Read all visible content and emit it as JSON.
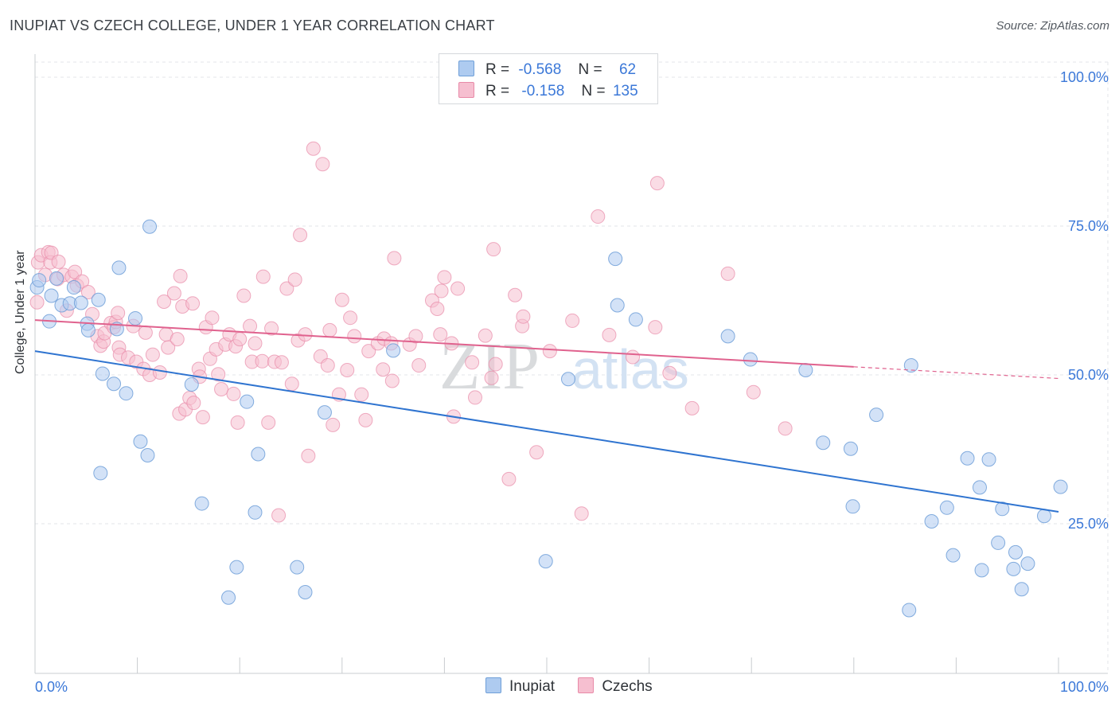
{
  "header": {
    "title": "INUPIAT VS CZECH COLLEGE, UNDER 1 YEAR CORRELATION CHART",
    "source": "Source: ZipAtlas.com"
  },
  "watermark": {
    "zip": "ZIP",
    "atlas": "atlas"
  },
  "legend": {
    "rows": [
      {
        "r_label": "R =",
        "r_value": "-0.568",
        "n_label": "N =",
        "n_value": "62"
      },
      {
        "r_label": "R =",
        "r_value": "-0.158",
        "n_label": "N =",
        "n_value": "135"
      }
    ]
  },
  "bottom_legend": {
    "inupiat": "Inupiat",
    "czechs": "Czechs"
  },
  "colors": {
    "inupiat_fill": "#aecbf0",
    "inupiat_stroke": "#6f9fd8",
    "inupiat_line": "#2f74d0",
    "czechs_fill": "#f6bfd0",
    "czechs_stroke": "#e88aa8",
    "czechs_line": "#e0628e",
    "tick_label": "#3b78d8",
    "grid": "#e3e5e8"
  },
  "chart_data": {
    "type": "scatter",
    "title": "INUPIAT VS CZECH COLLEGE, UNDER 1 YEAR CORRELATION CHART",
    "xlabel": "",
    "ylabel": "College, Under 1 year",
    "xlim": [
      0,
      100
    ],
    "ylim": [
      0,
      100
    ],
    "x_tick_labels": [
      "0.0%",
      "100.0%"
    ],
    "y_tick_labels": [
      {
        "value": 100,
        "label": "100.0%"
      },
      {
        "value": 75,
        "label": "75.0%"
      },
      {
        "value": 50,
        "label": "50.0%"
      },
      {
        "value": 25,
        "label": "25.0%"
      }
    ],
    "series": [
      {
        "name": "Inupiat",
        "r": -0.568,
        "n": 62,
        "trend": {
          "x0": 0,
          "y0": 54.0,
          "x1": 100,
          "y1": 27.0,
          "dashed_from": null
        },
        "points": [
          [
            0.2,
            64.7
          ],
          [
            0.4,
            65.9
          ],
          [
            1.4,
            59.0
          ],
          [
            1.6,
            63.3
          ],
          [
            2.1,
            66.2
          ],
          [
            2.6,
            61.7
          ],
          [
            3.4,
            62.0
          ],
          [
            3.8,
            64.7
          ],
          [
            4.5,
            62.1
          ],
          [
            5.1,
            58.6
          ],
          [
            5.2,
            57.5
          ],
          [
            6.2,
            62.6
          ],
          [
            6.4,
            33.5
          ],
          [
            6.6,
            50.2
          ],
          [
            7.7,
            48.5
          ],
          [
            8.0,
            57.7
          ],
          [
            8.2,
            68.0
          ],
          [
            8.9,
            46.9
          ],
          [
            9.8,
            59.5
          ],
          [
            10.3,
            38.8
          ],
          [
            11.0,
            36.5
          ],
          [
            11.2,
            74.9
          ],
          [
            15.3,
            48.4
          ],
          [
            16.3,
            28.4
          ],
          [
            18.9,
            12.6
          ],
          [
            19.7,
            17.7
          ],
          [
            20.7,
            45.5
          ],
          [
            21.5,
            26.9
          ],
          [
            21.8,
            36.7
          ],
          [
            25.6,
            17.7
          ],
          [
            26.4,
            13.5
          ],
          [
            28.3,
            43.7
          ],
          [
            35.0,
            54.1
          ],
          [
            49.9,
            18.7
          ],
          [
            52.1,
            49.3
          ],
          [
            56.7,
            69.5
          ],
          [
            56.9,
            61.7
          ],
          [
            58.7,
            59.3
          ],
          [
            67.7,
            56.5
          ],
          [
            69.9,
            52.6
          ],
          [
            75.3,
            50.8
          ],
          [
            77.0,
            38.6
          ],
          [
            79.7,
            37.6
          ],
          [
            79.9,
            27.9
          ],
          [
            82.2,
            43.3
          ],
          [
            85.4,
            10.5
          ],
          [
            85.6,
            51.6
          ],
          [
            87.6,
            25.4
          ],
          [
            89.1,
            27.7
          ],
          [
            89.7,
            19.7
          ],
          [
            91.1,
            36.0
          ],
          [
            92.3,
            31.1
          ],
          [
            92.5,
            17.2
          ],
          [
            93.2,
            35.8
          ],
          [
            94.1,
            21.8
          ],
          [
            94.5,
            27.5
          ],
          [
            95.6,
            17.4
          ],
          [
            95.8,
            20.2
          ],
          [
            96.4,
            14.0
          ],
          [
            97.0,
            18.3
          ],
          [
            98.6,
            26.3
          ],
          [
            100.2,
            31.2
          ]
        ]
      },
      {
        "name": "Czechs",
        "r": -0.158,
        "n": 135,
        "trend": {
          "x0": 0,
          "y0": 59.2,
          "x1": 100,
          "y1": 49.4,
          "dashed_from": 80
        },
        "points": [
          [
            0.2,
            62.2
          ],
          [
            0.3,
            68.9
          ],
          [
            0.6,
            70.1
          ],
          [
            1.0,
            66.8
          ],
          [
            1.3,
            70.6
          ],
          [
            1.5,
            68.9
          ],
          [
            1.6,
            70.5
          ],
          [
            2.2,
            66.1
          ],
          [
            2.3,
            69.0
          ],
          [
            2.8,
            66.8
          ],
          [
            3.1,
            60.8
          ],
          [
            3.6,
            66.5
          ],
          [
            3.9,
            67.3
          ],
          [
            4.1,
            65.0
          ],
          [
            4.6,
            65.7
          ],
          [
            5.2,
            63.9
          ],
          [
            5.6,
            60.2
          ],
          [
            6.1,
            56.5
          ],
          [
            6.4,
            54.9
          ],
          [
            6.7,
            55.6
          ],
          [
            6.8,
            57.0
          ],
          [
            7.4,
            58.7
          ],
          [
            7.7,
            58.0
          ],
          [
            7.9,
            58.9
          ],
          [
            8.1,
            60.4
          ],
          [
            8.2,
            54.6
          ],
          [
            8.3,
            53.4
          ],
          [
            9.1,
            52.9
          ],
          [
            9.6,
            58.2
          ],
          [
            9.9,
            52.2
          ],
          [
            10.6,
            51.0
          ],
          [
            10.8,
            57.1
          ],
          [
            11.2,
            50.0
          ],
          [
            11.5,
            53.4
          ],
          [
            12.2,
            50.4
          ],
          [
            12.6,
            62.3
          ],
          [
            12.8,
            56.8
          ],
          [
            13.0,
            54.6
          ],
          [
            13.6,
            63.7
          ],
          [
            13.9,
            56.0
          ],
          [
            14.1,
            43.5
          ],
          [
            14.2,
            66.6
          ],
          [
            14.4,
            61.5
          ],
          [
            14.7,
            44.2
          ],
          [
            15.1,
            46.1
          ],
          [
            15.4,
            62.0
          ],
          [
            15.5,
            45.3
          ],
          [
            16.0,
            51.0
          ],
          [
            16.1,
            49.7
          ],
          [
            16.4,
            42.9
          ],
          [
            16.7,
            58.0
          ],
          [
            17.1,
            52.7
          ],
          [
            17.3,
            59.6
          ],
          [
            17.7,
            54.3
          ],
          [
            17.9,
            50.1
          ],
          [
            18.2,
            47.6
          ],
          [
            18.6,
            55.1
          ],
          [
            19.0,
            56.8
          ],
          [
            19.4,
            46.8
          ],
          [
            19.6,
            54.8
          ],
          [
            19.8,
            42.0
          ],
          [
            20.0,
            56.0
          ],
          [
            20.4,
            63.3
          ],
          [
            21.0,
            58.2
          ],
          [
            21.2,
            52.2
          ],
          [
            21.5,
            55.3
          ],
          [
            22.2,
            52.3
          ],
          [
            22.3,
            66.5
          ],
          [
            22.8,
            42.0
          ],
          [
            23.1,
            57.8
          ],
          [
            23.4,
            52.2
          ],
          [
            23.8,
            26.4
          ],
          [
            24.1,
            52.1
          ],
          [
            24.6,
            64.5
          ],
          [
            25.1,
            48.5
          ],
          [
            25.4,
            66.0
          ],
          [
            25.7,
            55.8
          ],
          [
            25.9,
            73.5
          ],
          [
            26.4,
            56.8
          ],
          [
            26.7,
            36.4
          ],
          [
            27.2,
            88.0
          ],
          [
            27.9,
            53.1
          ],
          [
            28.1,
            85.4
          ],
          [
            28.6,
            51.6
          ],
          [
            28.8,
            57.5
          ],
          [
            29.1,
            41.6
          ],
          [
            29.7,
            46.7
          ],
          [
            30.0,
            62.6
          ],
          [
            30.5,
            50.8
          ],
          [
            30.8,
            59.6
          ],
          [
            31.2,
            56.5
          ],
          [
            31.9,
            46.7
          ],
          [
            32.3,
            42.4
          ],
          [
            32.6,
            54.0
          ],
          [
            33.5,
            55.3
          ],
          [
            34.0,
            50.9
          ],
          [
            34.1,
            56.1
          ],
          [
            34.8,
            55.3
          ],
          [
            34.9,
            49.0
          ],
          [
            35.1,
            69.6
          ],
          [
            36.6,
            55.1
          ],
          [
            37.2,
            56.5
          ],
          [
            37.5,
            51.6
          ],
          [
            38.8,
            62.5
          ],
          [
            39.3,
            61.1
          ],
          [
            39.6,
            56.8
          ],
          [
            39.7,
            64.1
          ],
          [
            40.0,
            66.4
          ],
          [
            40.7,
            55.3
          ],
          [
            40.9,
            43.0
          ],
          [
            41.3,
            64.5
          ],
          [
            42.7,
            52.1
          ],
          [
            43.0,
            46.2
          ],
          [
            44.0,
            56.6
          ],
          [
            44.6,
            49.5
          ],
          [
            44.8,
            71.1
          ],
          [
            45.0,
            51.8
          ],
          [
            46.3,
            32.5
          ],
          [
            46.9,
            63.4
          ],
          [
            47.6,
            58.2
          ],
          [
            47.7,
            59.8
          ],
          [
            49.0,
            37.0
          ],
          [
            52.5,
            59.1
          ],
          [
            53.4,
            26.7
          ],
          [
            55.0,
            76.6
          ],
          [
            56.1,
            56.7
          ],
          [
            60.6,
            58.0
          ],
          [
            60.8,
            82.2
          ],
          [
            67.7,
            67.0
          ],
          [
            62.0,
            50.3
          ],
          [
            64.2,
            44.4
          ],
          [
            70.2,
            47.1
          ],
          [
            73.3,
            41.0
          ],
          [
            58.4,
            53.0
          ],
          [
            50.3,
            54.0
          ]
        ]
      }
    ]
  }
}
